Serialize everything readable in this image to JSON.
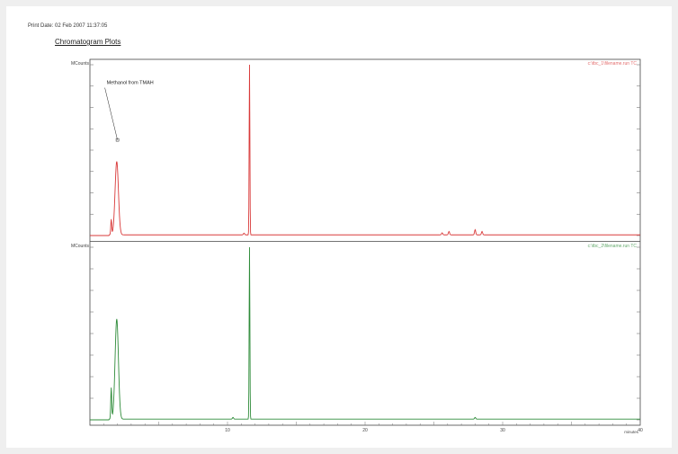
{
  "header": {
    "print_date": "Print Date: 02 Feb 2007 11:37:05",
    "title": "Chromatogram Plots"
  },
  "chart_data": [
    {
      "type": "line",
      "panel": "top",
      "color": "#d93a3a",
      "y_unit_label": "MCounts",
      "trace_label": "c:\\tbc_1\\filename.run TC",
      "annotations": [
        {
          "text": "Methanol from TMAH",
          "x": 2.0,
          "y": 0.56
        }
      ],
      "xlim": [
        0,
        40
      ],
      "ylim": [
        0,
        1
      ],
      "baseline_start": 1.4,
      "peaks": [
        {
          "x": 1.55,
          "height": 0.09,
          "width": 0.08
        },
        {
          "x": 1.95,
          "height": 0.43,
          "width": 0.28
        },
        {
          "x": 11.6,
          "height": 1.0,
          "width": 0.06
        },
        {
          "x": 11.2,
          "height": 0.01,
          "width": 0.1
        },
        {
          "x": 25.6,
          "height": 0.012,
          "width": 0.1
        },
        {
          "x": 26.1,
          "height": 0.02,
          "width": 0.1
        },
        {
          "x": 28.0,
          "height": 0.03,
          "width": 0.1
        },
        {
          "x": 28.5,
          "height": 0.02,
          "width": 0.1
        }
      ]
    },
    {
      "type": "line",
      "panel": "bottom",
      "color": "#2f8c3a",
      "y_unit_label": "MCounts",
      "trace_label": "c:\\tbc_2\\filename.run TC",
      "xlim": [
        0,
        40
      ],
      "ylim": [
        0,
        1
      ],
      "x_ticks": [
        "10",
        "20",
        "30",
        "40"
      ],
      "x_unit": "minutes",
      "baseline_start": 1.4,
      "peaks": [
        {
          "x": 1.55,
          "height": 0.18,
          "width": 0.08
        },
        {
          "x": 1.95,
          "height": 0.58,
          "width": 0.28
        },
        {
          "x": 11.6,
          "height": 1.0,
          "width": 0.06
        },
        {
          "x": 10.4,
          "height": 0.01,
          "width": 0.1
        },
        {
          "x": 28.0,
          "height": 0.01,
          "width": 0.1
        }
      ]
    }
  ]
}
